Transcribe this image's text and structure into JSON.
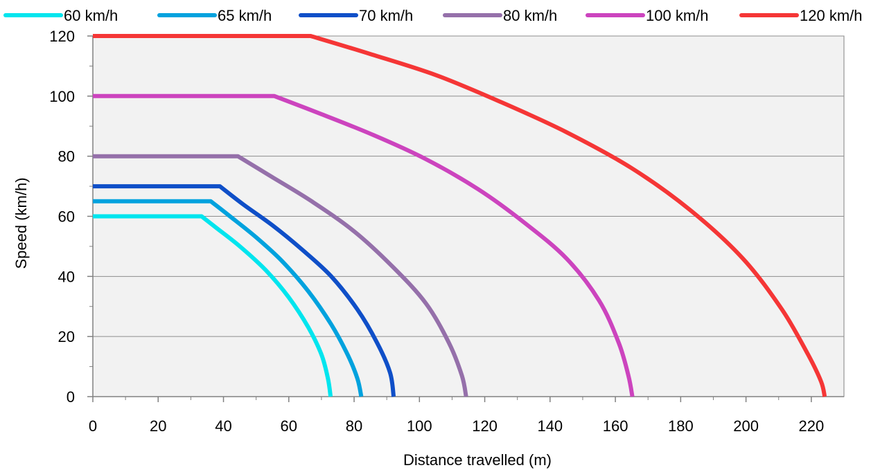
{
  "chart_data": {
    "type": "line",
    "title": "",
    "xlabel": "Distance travelled (m)",
    "ylabel": "Speed (km/h)",
    "xlim": [
      0,
      230
    ],
    "ylim": [
      0,
      120
    ],
    "x_ticks": [
      0,
      20,
      40,
      60,
      80,
      100,
      120,
      140,
      160,
      180,
      200,
      220
    ],
    "y_ticks": [
      0,
      20,
      40,
      60,
      80,
      100,
      120
    ],
    "grid": "horizontal",
    "legend_position": "top",
    "plot_background": "#f2f2f2",
    "series": [
      {
        "name": "60 km/h",
        "color": "#00e5ee",
        "points": [
          [
            0,
            60
          ],
          [
            33.3,
            60
          ],
          [
            38,
            56
          ],
          [
            45,
            50
          ],
          [
            53,
            42
          ],
          [
            60,
            33
          ],
          [
            66,
            23
          ],
          [
            70,
            14
          ],
          [
            72,
            6
          ],
          [
            72.8,
            0
          ]
        ]
      },
      {
        "name": "65 km/h",
        "color": "#00a2de",
        "points": [
          [
            0,
            65
          ],
          [
            36.1,
            65
          ],
          [
            42,
            60
          ],
          [
            50,
            53
          ],
          [
            58,
            45
          ],
          [
            66,
            35
          ],
          [
            73,
            24
          ],
          [
            78,
            14
          ],
          [
            81,
            6
          ],
          [
            82.2,
            0
          ]
        ]
      },
      {
        "name": "70 km/h",
        "color": "#0f4fc8",
        "points": [
          [
            0,
            70
          ],
          [
            38.9,
            70
          ],
          [
            46,
            64
          ],
          [
            55,
            57
          ],
          [
            64,
            49
          ],
          [
            73,
            40
          ],
          [
            81,
            29
          ],
          [
            87,
            18
          ],
          [
            91,
            8
          ],
          [
            92.1,
            0
          ]
        ]
      },
      {
        "name": "80 km/h",
        "color": "#9570aa",
        "points": [
          [
            0,
            80
          ],
          [
            44.4,
            80
          ],
          [
            55,
            73
          ],
          [
            67,
            65
          ],
          [
            80,
            55
          ],
          [
            92,
            43
          ],
          [
            102,
            31
          ],
          [
            109,
            18
          ],
          [
            113,
            7
          ],
          [
            114.3,
            0
          ]
        ]
      },
      {
        "name": "100 km/h",
        "color": "#cc44be",
        "points": [
          [
            0,
            100
          ],
          [
            55.6,
            100
          ],
          [
            70,
            94
          ],
          [
            86,
            87
          ],
          [
            102,
            79
          ],
          [
            118,
            69
          ],
          [
            132,
            58
          ],
          [
            145,
            46
          ],
          [
            155,
            32
          ],
          [
            161,
            18
          ],
          [
            164,
            7
          ],
          [
            165.2,
            0
          ]
        ]
      },
      {
        "name": "120 km/h",
        "color": "#f53636",
        "points": [
          [
            0,
            120
          ],
          [
            66.7,
            120
          ],
          [
            85,
            114
          ],
          [
            105,
            107
          ],
          [
            125,
            98
          ],
          [
            145,
            88
          ],
          [
            165,
            76
          ],
          [
            183,
            62
          ],
          [
            199,
            46
          ],
          [
            211,
            29
          ],
          [
            219,
            14
          ],
          [
            223,
            5
          ],
          [
            224.1,
            0
          ]
        ]
      }
    ]
  }
}
